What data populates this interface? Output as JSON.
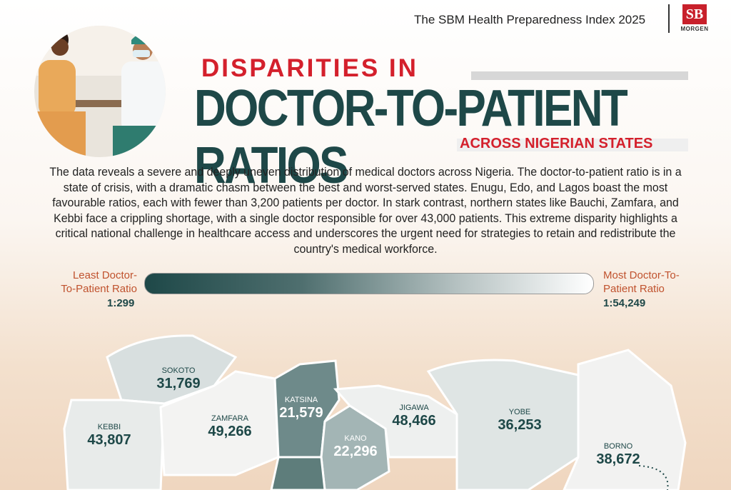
{
  "header": {
    "title": "The SBM Health Preparedness Index 2025",
    "logo": "SB",
    "logo_name": "MORGEN"
  },
  "title": {
    "line1": "DISPARITIES IN",
    "line2": "DOCTOR-TO-PATIENT RATIOS",
    "line3": "ACROSS NIGERIAN STATES"
  },
  "intro": "The data reveals a severe and deeply uneven distribution of medical doctors across Nigeria. The doctor-to-patient ratio is in a state of crisis, with a dramatic chasm between the best and worst-served states. Enugu, Edo, and Lagos boast the most favourable ratios, each with fewer than 3,200 patients per doctor. In stark contrast, northern states like Bauchi, Zamfara, and Kebbi face a crippling shortage, with a single doctor responsible for over 43,000 patients. This extreme disparity highlights a critical national challenge in healthcare access and underscores the urgent need for strategies to retain and redistribute the country's medical workforce.",
  "legend": {
    "left_label": "Least Doctor-To-Patient Ratio",
    "left_value": "1:299",
    "right_label": "Most Doctor-To-Patient Ratio",
    "right_value": "1:54,249"
  },
  "map": {
    "states": [
      {
        "name": "SOKOTO",
        "value": "31,769"
      },
      {
        "name": "KEBBI",
        "value": "43,807"
      },
      {
        "name": "ZAMFARA",
        "value": "49,266"
      },
      {
        "name": "KATSINA",
        "value": "21,579"
      },
      {
        "name": "KANO",
        "value": "22,296"
      },
      {
        "name": "JIGAWA",
        "value": "48,466"
      },
      {
        "name": "YOBE",
        "value": "36,253"
      },
      {
        "name": "BORNO",
        "value": "38,672"
      }
    ]
  }
}
